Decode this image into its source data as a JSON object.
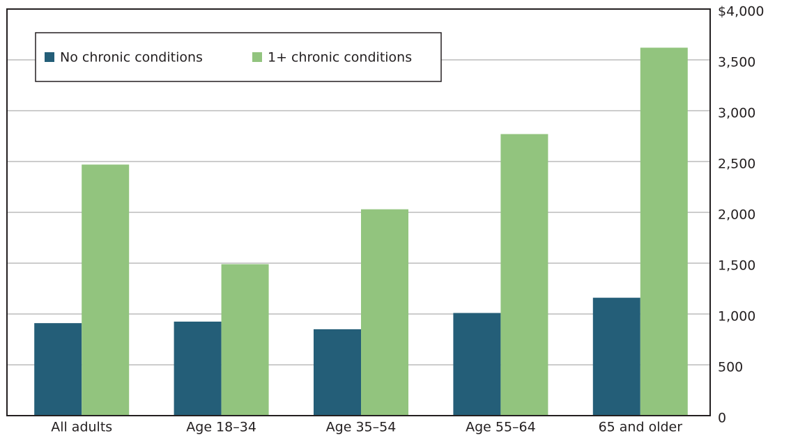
{
  "chart_data": {
    "type": "bar",
    "categories": [
      "All adults",
      "Age 18–34",
      "Age 35–54",
      "Age 55–64",
      "65 and older"
    ],
    "series": [
      {
        "name": "No chronic conditions",
        "color": "#245e78",
        "values": [
          910,
          925,
          850,
          1010,
          1160
        ]
      },
      {
        "name": "1+ chronic conditions",
        "color": "#92c47e",
        "values": [
          2470,
          1490,
          2030,
          2770,
          3620
        ]
      }
    ],
    "ylim": [
      0,
      4000
    ],
    "yticks": [
      0,
      500,
      {
        "value": 1000,
        "label": "1,000"
      },
      {
        "value": 1500,
        "label": "1,500"
      },
      {
        "value": 2000,
        "label": "2,000"
      },
      {
        "value": 2500,
        "label": "2,500"
      },
      {
        "value": 3000,
        "label": "3,000"
      },
      {
        "value": 3500,
        "label": "3,500"
      },
      {
        "value": 4000,
        "label": "$4,000"
      }
    ],
    "grid": true
  }
}
